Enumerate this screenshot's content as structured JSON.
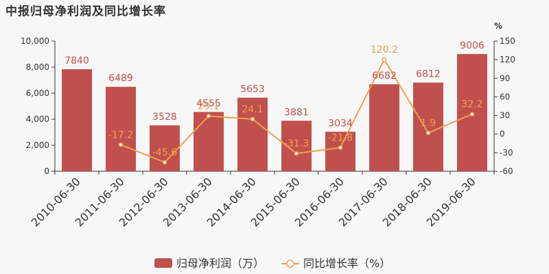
{
  "title": "中报归母净利润及同比增长率",
  "chart_data": {
    "type": "bar",
    "categories": [
      "2010-06-30",
      "2011-06-30",
      "2012-06-30",
      "2013-06-30",
      "2014-06-30",
      "2015-06-30",
      "2016-06-30",
      "2017-06-30",
      "2018-06-30",
      "2019-06-30"
    ],
    "series": [
      {
        "name": "归母净利润（万）",
        "type": "bar",
        "axis": "left",
        "color": "#c0504d",
        "values": [
          7840,
          6489,
          3528,
          4555,
          5653,
          3881,
          3034,
          6682,
          6812,
          9006
        ],
        "labels": [
          "7840",
          "6489",
          "3528",
          "4555",
          "5653",
          "3881",
          "3034",
          "6682",
          "6812",
          "9006"
        ]
      },
      {
        "name": "同比增长率（%）",
        "type": "line",
        "axis": "right",
        "color": "#f0a050",
        "values": [
          null,
          -17.2,
          -45.6,
          29.1,
          24.1,
          -31.3,
          -21.8,
          120.2,
          1.9,
          32.2
        ],
        "labels": [
          "",
          "-17.2",
          "-45.6",
          "29.1",
          "24.1",
          "-31.3",
          "-21.8",
          "120.2",
          "1.9",
          "32.2"
        ]
      }
    ],
    "ylim_left": [
      0,
      10000
    ],
    "yticks_left": [
      0,
      2000,
      4000,
      6000,
      8000,
      10000
    ],
    "yticklabels_left": [
      "0",
      "2,000",
      "4,000",
      "6,000",
      "8,000",
      "10,000"
    ],
    "ylim_right": [
      -60,
      150
    ],
    "yticks_right": [
      -60,
      -30,
      0,
      30,
      60,
      90,
      120,
      150
    ],
    "yticklabels_right": [
      "-60",
      "-30",
      "0",
      "30",
      "60",
      "90",
      "120",
      "150"
    ],
    "ylabel_right": "%",
    "legend_position": "bottom",
    "grid": false
  }
}
